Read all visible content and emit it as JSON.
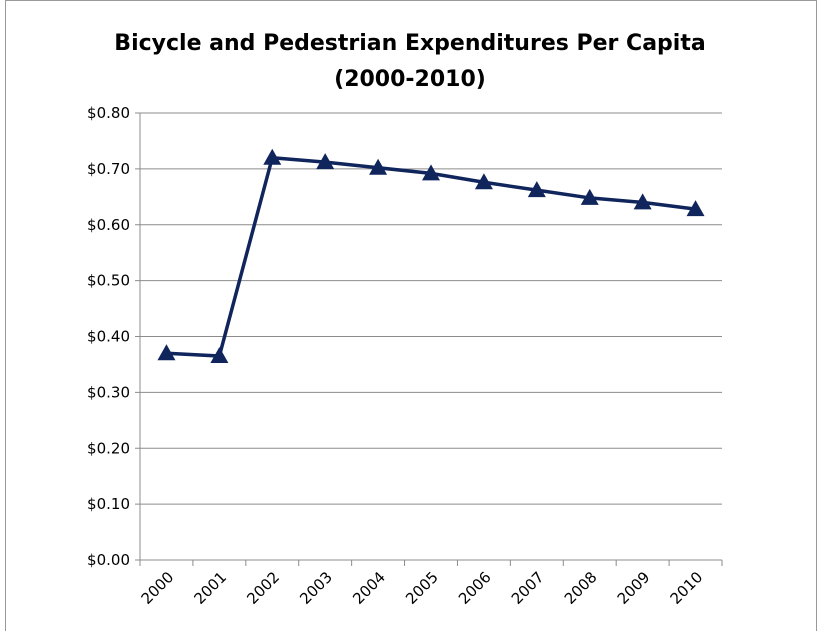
{
  "chart_data": {
    "type": "line",
    "title": "Bicycle and Pedestrian Expenditures Per Capita",
    "subtitle": "(2000-2010)",
    "categories": [
      "2000",
      "2001",
      "2002",
      "2003",
      "2004",
      "2005",
      "2006",
      "2007",
      "2008",
      "2009",
      "2010"
    ],
    "series": [
      {
        "name": "Expenditures Per Capita",
        "color": "#10255c",
        "values": [
          0.37,
          0.365,
          0.72,
          0.712,
          0.702,
          0.692,
          0.676,
          0.662,
          0.648,
          0.64,
          0.628
        ]
      }
    ],
    "ylim": [
      0,
      0.8
    ],
    "yticks": [
      {
        "value": 0,
        "label": "$0.00"
      },
      {
        "value": 0.1,
        "label": "$0.10"
      },
      {
        "value": 0.2,
        "label": "$0.20"
      },
      {
        "value": 0.3,
        "label": "$0.30"
      },
      {
        "value": 0.4,
        "label": "$0.40"
      },
      {
        "value": 0.5,
        "label": "$0.50"
      },
      {
        "value": 0.6,
        "label": "$0.60"
      },
      {
        "value": 0.7,
        "label": "$0.70"
      },
      {
        "value": 0.8,
        "label": "$0.80"
      }
    ],
    "grid": true
  }
}
